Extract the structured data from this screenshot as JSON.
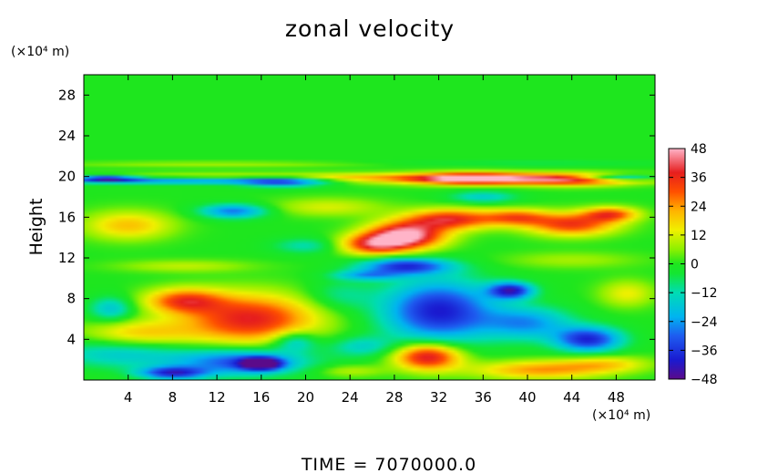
{
  "chart_data": {
    "type": "heatmap",
    "title": "zonal velocity",
    "ylabel": "Height",
    "y_units_label": "(×10⁴ m)",
    "x_units_label": "(×10⁴ m)",
    "footer": "TIME = 7070000.0",
    "xlim": [
      0,
      51.5
    ],
    "ylim": [
      0,
      30
    ],
    "x_ticks": [
      4,
      8,
      12,
      16,
      20,
      24,
      28,
      32,
      36,
      40,
      44,
      48
    ],
    "y_ticks": [
      4,
      8,
      12,
      16,
      20,
      24,
      28
    ],
    "colorbar": {
      "min": -48,
      "max": 48,
      "ticks": [
        48,
        36,
        24,
        12,
        0,
        -12,
        -24,
        -36,
        -48
      ],
      "stops": [
        {
          "v": -48,
          "color": "#5b0a8a"
        },
        {
          "v": -40,
          "color": "#1a1ad0"
        },
        {
          "v": -30,
          "color": "#1e5cf0"
        },
        {
          "v": -22,
          "color": "#00b4f0"
        },
        {
          "v": -12,
          "color": "#00dcb4"
        },
        {
          "v": -4,
          "color": "#14e632"
        },
        {
          "v": 0,
          "color": "#1ee61e"
        },
        {
          "v": 6,
          "color": "#8cf000"
        },
        {
          "v": 14,
          "color": "#f0f000"
        },
        {
          "v": 22,
          "color": "#ffb400"
        },
        {
          "v": 30,
          "color": "#ff5000"
        },
        {
          "v": 38,
          "color": "#e61e1e"
        },
        {
          "v": 48,
          "color": "#ffb4c8"
        }
      ]
    },
    "blobs": [
      {
        "x": 27,
        "y": 19.8,
        "rx": 26,
        "ry": 0.5,
        "v": 26
      },
      {
        "x": 10,
        "y": 19.6,
        "rx": 12,
        "ry": 0.35,
        "v": -38
      },
      {
        "x": 2,
        "y": 19.8,
        "rx": 3,
        "ry": 0.3,
        "v": -40
      },
      {
        "x": 48,
        "y": 19.9,
        "rx": 4,
        "ry": 0.3,
        "v": -34
      },
      {
        "x": 18,
        "y": 19.5,
        "rx": 4,
        "ry": 0.5,
        "v": -30
      },
      {
        "x": 35,
        "y": 19.8,
        "rx": 5,
        "ry": 0.6,
        "v": 36
      },
      {
        "x": 44,
        "y": 19.7,
        "rx": 5,
        "ry": 0.6,
        "v": 30
      },
      {
        "x": 29,
        "y": 14.2,
        "rx": 3.5,
        "ry": 1.3,
        "v": 50
      },
      {
        "x": 33,
        "y": 15.8,
        "rx": 4,
        "ry": 1.0,
        "v": 36
      },
      {
        "x": 26,
        "y": 13.3,
        "rx": 3,
        "ry": 1.0,
        "v": 32
      },
      {
        "x": 39,
        "y": 16.0,
        "rx": 3,
        "ry": 0.8,
        "v": 26
      },
      {
        "x": 44,
        "y": 15.3,
        "rx": 4,
        "ry": 1.1,
        "v": 34
      },
      {
        "x": 47.5,
        "y": 16.3,
        "rx": 2.5,
        "ry": 0.7,
        "v": 30
      },
      {
        "x": 4,
        "y": 15.2,
        "rx": 4,
        "ry": 1.4,
        "v": 20
      },
      {
        "x": 13.5,
        "y": 16.6,
        "rx": 3,
        "ry": 0.7,
        "v": -28
      },
      {
        "x": 22,
        "y": 17.0,
        "rx": 5,
        "ry": 0.9,
        "v": 12
      },
      {
        "x": 29,
        "y": 11.2,
        "rx": 4,
        "ry": 0.8,
        "v": -36
      },
      {
        "x": 25.5,
        "y": 10.3,
        "rx": 3,
        "ry": 0.5,
        "v": -20
      },
      {
        "x": 15,
        "y": 6.0,
        "rx": 6,
        "ry": 2.4,
        "v": 38
      },
      {
        "x": 9,
        "y": 7.8,
        "rx": 3.5,
        "ry": 1.2,
        "v": 30
      },
      {
        "x": 5,
        "y": 4.6,
        "rx": 5,
        "ry": 1.3,
        "v": 18
      },
      {
        "x": 3,
        "y": 2.6,
        "rx": 6,
        "ry": 1.4,
        "v": -16
      },
      {
        "x": 14,
        "y": 1.8,
        "rx": 6,
        "ry": 1.3,
        "v": -32
      },
      {
        "x": 16,
        "y": 1.6,
        "rx": 1.8,
        "ry": 0.6,
        "v": -48
      },
      {
        "x": 8,
        "y": 0.7,
        "rx": 3,
        "ry": 0.6,
        "v": -36
      },
      {
        "x": 32,
        "y": 6.8,
        "rx": 5,
        "ry": 3.0,
        "v": -40
      },
      {
        "x": 38.5,
        "y": 8.8,
        "rx": 2,
        "ry": 0.8,
        "v": -40
      },
      {
        "x": 40,
        "y": 5.6,
        "rx": 4,
        "ry": 1.6,
        "v": -24
      },
      {
        "x": 45.5,
        "y": 4.0,
        "rx": 3,
        "ry": 1.2,
        "v": -38
      },
      {
        "x": 31,
        "y": 2.3,
        "rx": 3,
        "ry": 1.3,
        "v": 42
      },
      {
        "x": 25,
        "y": 3.3,
        "rx": 3,
        "ry": 1.0,
        "v": -14
      },
      {
        "x": 41,
        "y": 1.0,
        "rx": 6,
        "ry": 0.9,
        "v": 24
      },
      {
        "x": 49,
        "y": 8.5,
        "rx": 2.5,
        "ry": 1.3,
        "v": 14
      },
      {
        "x": 24,
        "y": 0.9,
        "rx": 3,
        "ry": 0.6,
        "v": 10
      },
      {
        "x": 20,
        "y": 13.2,
        "rx": 3,
        "ry": 0.8,
        "v": -12
      },
      {
        "x": 9,
        "y": 11.2,
        "rx": 6,
        "ry": 0.6,
        "v": 10
      },
      {
        "x": 44,
        "y": 11.8,
        "rx": 6,
        "ry": 0.8,
        "v": 8
      },
      {
        "x": 36,
        "y": 18.0,
        "rx": 3,
        "ry": 0.6,
        "v": -16
      },
      {
        "x": 2.5,
        "y": 7.0,
        "rx": 2,
        "ry": 1.2,
        "v": -18
      },
      {
        "x": 23,
        "y": 8.3,
        "rx": 3,
        "ry": 1.5,
        "v": -10
      },
      {
        "x": 19,
        "y": 3.8,
        "rx": 2,
        "ry": 1.0,
        "v": -20
      },
      {
        "x": 47,
        "y": 1.6,
        "rx": 4,
        "ry": 0.8,
        "v": 16
      },
      {
        "x": 12,
        "y": 21.2,
        "rx": 14,
        "ry": 0.3,
        "v": 8
      },
      {
        "x": 40,
        "y": 21.3,
        "rx": 14,
        "ry": 0.3,
        "v": -6
      }
    ]
  }
}
